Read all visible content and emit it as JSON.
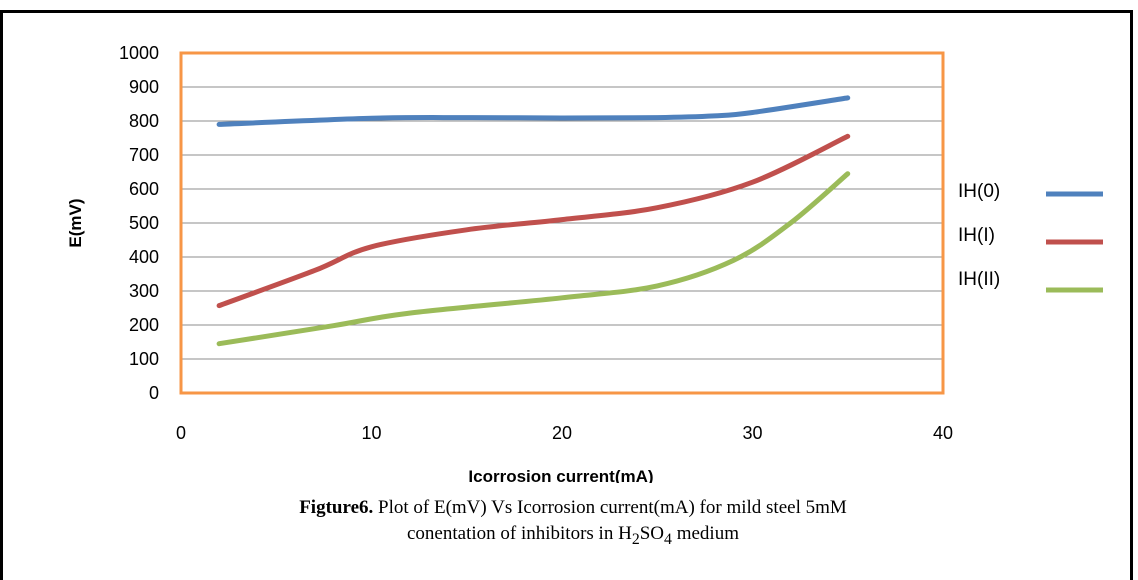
{
  "chart_data": {
    "type": "line",
    "xlabel": "Icorrosion current(mA)",
    "ylabel": "E(mV)",
    "xlim": [
      0,
      40
    ],
    "ylim": [
      0,
      1000
    ],
    "xticks": [
      0,
      10,
      20,
      30,
      40
    ],
    "yticks": [
      0,
      100,
      200,
      300,
      400,
      500,
      600,
      700,
      800,
      900,
      1000
    ],
    "grid": "horizontal",
    "legend_position": "right",
    "plot_border_color": "#F79646",
    "series": [
      {
        "name": "IH(0)",
        "color": "#4F81BD",
        "x": [
          2,
          10,
          15,
          20,
          25,
          28,
          30,
          35
        ],
        "values": [
          790,
          808,
          810,
          809,
          810,
          815,
          825,
          868
        ]
      },
      {
        "name": "IH(I)",
        "color": "#C0504D",
        "x": [
          2,
          7,
          10,
          15,
          20,
          25,
          30,
          35
        ],
        "values": [
          257,
          360,
          430,
          480,
          510,
          545,
          620,
          755
        ]
      },
      {
        "name": "IH(II)",
        "color": "#9BBB59",
        "x": [
          2,
          8,
          12,
          20,
          25,
          29,
          32,
          35
        ],
        "values": [
          145,
          198,
          235,
          280,
          315,
          390,
          500,
          645
        ]
      }
    ]
  },
  "caption": {
    "lead": "Figture6.",
    "line1_rest": " Plot of E(mV) Vs Icorrosion current(mA) for mild steel 5mM",
    "line2_start": "conentation of inhibitors in H",
    "sub1": "2",
    "mid": "SO",
    "sub2": "4",
    "line2_end": " medium"
  }
}
